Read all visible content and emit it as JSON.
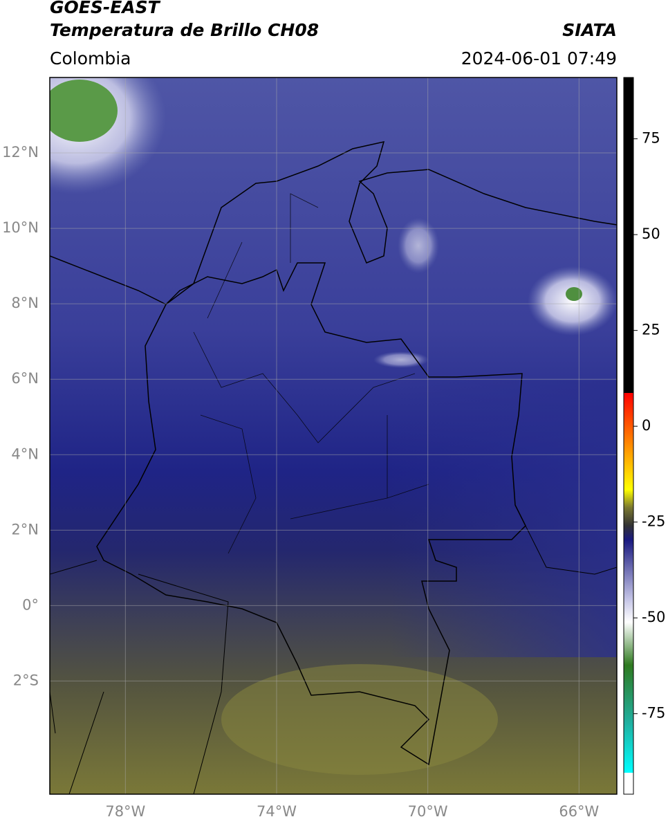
{
  "header": {
    "satellite": "GOES-EAST",
    "product": "Temperatura de Brillo CH08",
    "source": "SIATA",
    "region": "Colombia",
    "timestamp": "2024-06-01 07:49"
  },
  "map": {
    "xlim": [
      -80,
      -65
    ],
    "ylim": [
      -5,
      14
    ],
    "xticks": [
      {
        "value": -78,
        "label": "78°W"
      },
      {
        "value": -74,
        "label": "74°W"
      },
      {
        "value": -70,
        "label": "70°W"
      },
      {
        "value": -66,
        "label": "66°W"
      }
    ],
    "yticks": [
      {
        "value": 12,
        "label": "12°N"
      },
      {
        "value": 10,
        "label": "10°N"
      },
      {
        "value": 8,
        "label": "8°N"
      },
      {
        "value": 6,
        "label": "6°N"
      },
      {
        "value": 4,
        "label": "4°N"
      },
      {
        "value": 2,
        "label": "2°N"
      },
      {
        "value": 0,
        "label": "0°"
      },
      {
        "value": -2,
        "label": "2°S"
      }
    ],
    "grid": true
  },
  "colorbar": {
    "lim": [
      -96,
      91
    ],
    "ticks": [
      75,
      50,
      25,
      0,
      -25,
      -50,
      -75
    ]
  }
}
